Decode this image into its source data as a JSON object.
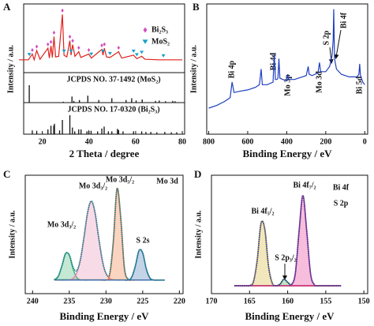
{
  "chart_data": [
    {
      "type": "xrd",
      "panel": "A",
      "y_label": "Intensity / a.u.",
      "x_label": "2 Theta / degree",
      "xlim": [
        12,
        81
      ],
      "xticks": [
        20,
        40,
        60,
        80
      ],
      "ylim": [
        0,
        110
      ],
      "color": "#e0201c",
      "x": [
        10,
        14,
        15.7,
        16.5,
        17.6,
        19,
        22.4,
        23,
        23.7,
        24.3,
        25,
        25.7,
        27,
        28.6,
        29.3,
        30.5,
        31.8,
        32.3,
        33,
        34,
        35.6,
        36.5,
        39.9,
        41,
        45.5,
        46,
        46.6,
        47.5,
        49,
        52.7,
        54,
        59.1,
        60.5,
        62.6,
        64,
        70,
        75,
        80
      ],
      "values": [
        22,
        22,
        32,
        22,
        38,
        23,
        42,
        25,
        46,
        26,
        62,
        27,
        28,
        100,
        30,
        27,
        55,
        30,
        48,
        28,
        36,
        26,
        32,
        25,
        40,
        30,
        42,
        27,
        26,
        36,
        25,
        30,
        24,
        28,
        23,
        22,
        22,
        22
      ],
      "legend": [
        {
          "name": "Bi₂S₃",
          "color": "#d050c0",
          "marker": "diamond",
          "marker_x": [
            15.7,
            17.6,
            22.4,
            23.7,
            25,
            28.6,
            31.8,
            33,
            35.6,
            39.9,
            45.5,
            46.6,
            52.7
          ]
        },
        {
          "name": "MoS₂",
          "color": "#1aa0c8",
          "marker": "triangle",
          "marker_x": [
            14.4,
            29.3,
            32.3,
            41,
            46,
            49,
            59.1,
            60.5,
            62.6,
            71.9
          ]
        }
      ],
      "references": [
        {
          "name": "JCPDS NO. 37-1492 (MoS₂)",
          "ylim": [
            0,
            100
          ],
          "x": [
            14.4,
            29,
            32.7,
            33.5,
            35.9,
            39.5,
            44.2,
            49.8,
            55.9,
            58.3,
            60.2,
            62.8,
            68.5,
            70.1,
            72.8,
            75.9,
            76.9
          ],
          "values": [
            100,
            5,
            35,
            10,
            15,
            40,
            15,
            25,
            15,
            25,
            12,
            18,
            10,
            12,
            8,
            10,
            8
          ]
        },
        {
          "name": "JCPDS NO. 17-0320 (Bi₂S₃)",
          "ylim": [
            0,
            100
          ],
          "x": [
            15.7,
            17.6,
            22.4,
            23.7,
            24.9,
            25.2,
            27.4,
            28.6,
            31.8,
            32.9,
            33.9,
            35.6,
            36.6,
            39.1,
            39.9,
            40.9,
            43.7,
            45.5,
            46.5,
            48.3,
            49.8,
            52.2,
            52.7,
            54.6,
            59.1,
            62.6,
            64.4,
            66.5,
            69.1,
            72.5,
            75.3,
            77.6
          ],
          "values": [
            20,
            18,
            25,
            45,
            45,
            55,
            20,
            75,
            100,
            35,
            15,
            25,
            25,
            15,
            20,
            18,
            15,
            30,
            40,
            15,
            15,
            28,
            22,
            15,
            15,
            15,
            12,
            12,
            10,
            12,
            10,
            10
          ]
        }
      ]
    },
    {
      "type": "line",
      "panel": "B",
      "y_label": "Intensity / a.u.",
      "x_label": "Binding Energy / eV",
      "xlim": [
        810,
        -15
      ],
      "xticks": [
        800,
        600,
        400,
        200,
        0
      ],
      "ylim": [
        0,
        100
      ],
      "color": "#1f3fbf",
      "x": [
        800,
        760,
        720,
        690,
        680,
        670,
        640,
        600,
        560,
        540,
        531,
        525,
        500,
        470,
        464,
        458,
        450,
        445,
        440,
        435,
        420,
        400,
        395,
        390,
        360,
        320,
        300,
        290,
        285,
        270,
        240,
        232,
        226,
        200,
        180,
        168,
        162,
        159,
        155,
        145,
        120,
        80,
        40,
        30,
        26,
        22,
        10,
        0
      ],
      "values": [
        20,
        22,
        25,
        28,
        40,
        32,
        33,
        34,
        36,
        38,
        50,
        38,
        38,
        40,
        62,
        42,
        42,
        43,
        58,
        43,
        42,
        41,
        46,
        42,
        42,
        44,
        45,
        52,
        46,
        45,
        47,
        55,
        48,
        48,
        52,
        60,
        72,
        96,
        58,
        50,
        46,
        44,
        44,
        46,
        54,
        45,
        40,
        38
      ],
      "annotations": [
        "Bi 4p",
        "Bi 4d",
        "Mo 3p",
        "Mo 3d",
        "S 2p",
        "Bi 4f",
        "Bi 5d"
      ]
    },
    {
      "type": "fit",
      "panel": "C",
      "title": [
        "Mo 3d"
      ],
      "y_label": "Intensity / a.u.",
      "x_label": "Binding Energy / eV",
      "xlim": [
        241,
        219.5
      ],
      "xticks": [
        240,
        235,
        230,
        225,
        220
      ],
      "ylim": [
        0,
        105
      ],
      "x": [
        237,
        236.5,
        236,
        235.5,
        235,
        234.5,
        234,
        233.5,
        233,
        232.5,
        232,
        231.5,
        231,
        230.5,
        230,
        229.5,
        229,
        228.5,
        228,
        227.5,
        227,
        226.5,
        226,
        225.5,
        225,
        224.5,
        224,
        223.5,
        223,
        222.5,
        222
      ],
      "series": [
        {
          "color": "#3cb371",
          "values": [
            12.5,
            15.4,
            24.7,
            35.6,
            34,
            22.3,
            14.4,
            12.3,
            12,
            12,
            12,
            12,
            12,
            12,
            12,
            12,
            12,
            12,
            12,
            12,
            12,
            12,
            12,
            12,
            12,
            12,
            12,
            12,
            12,
            12,
            12
          ]
        },
        {
          "color": "#e48ab4",
          "values": [
            12,
            12,
            12,
            12,
            12.3,
            13.5,
            17.9,
            29.5,
            49.8,
            72,
            82,
            72,
            49.8,
            29.5,
            17.9,
            13.5,
            12.3,
            12,
            12,
            12,
            12,
            12,
            12,
            12,
            12,
            12,
            12,
            12,
            12,
            12,
            12
          ]
        },
        {
          "color": "#f07030",
          "values": [
            12,
            12,
            12,
            12,
            12,
            12,
            12,
            12,
            12,
            12,
            12,
            12,
            12,
            12,
            12.1,
            16.2,
            46,
            93,
            68,
            23.2,
            12.7,
            12,
            12,
            12,
            12,
            12,
            12,
            12,
            12,
            12,
            12
          ]
        },
        {
          "color": "#3a6fb0",
          "values": [
            12,
            12,
            12,
            12,
            12,
            12,
            12,
            12,
            12,
            12,
            12,
            12,
            12,
            12,
            12,
            12,
            12,
            12,
            12,
            12,
            12,
            14.6,
            24.5,
            38.2,
            36.1,
            21.7,
            13.7,
            12.1,
            12,
            12,
            12
          ]
        },
        {
          "color": "#1d7f8a",
          "envelope": true,
          "values": [
            12.5,
            15.4,
            24.7,
            35.6,
            34.3,
            23.8,
            20.3,
            29.8,
            49.8,
            72,
            82,
            72,
            49.8,
            29.5,
            18,
            17.7,
            46.3,
            93,
            68,
            23.2,
            12.9,
            14.6,
            24.5,
            38.2,
            36.1,
            21.7,
            13.7,
            12.1,
            12,
            12,
            12
          ]
        }
      ],
      "annotations": [
        "Mo 3d₃/₂",
        "Mo 3d₃/₂",
        "Mo 3d₅/₂",
        "S 2s"
      ]
    },
    {
      "type": "fit",
      "panel": "D",
      "title": [
        "Bi  4f",
        "S  2p"
      ],
      "y_label": "Intensity / a.u.",
      "x_label": "Binding Energy / eV",
      "xlim": [
        170,
        149.5
      ],
      "xticks": [
        170,
        165,
        160,
        155,
        150
      ],
      "ylim": [
        0,
        105
      ],
      "x": [
        167,
        166.5,
        166,
        165.5,
        165,
        164.5,
        164,
        163.5,
        163,
        162.5,
        162,
        161.5,
        161,
        160.5,
        160,
        159.5,
        159,
        158.5,
        158,
        157.5,
        157,
        156.5,
        156,
        155.5,
        155,
        154.5,
        154,
        153.5,
        153
      ],
      "series": [
        {
          "color": "#d4b020",
          "values": [
            7,
            7,
            7,
            7,
            7.2,
            10.4,
            29.5,
            62.2,
            57.1,
            23.7,
            9,
            7.1,
            7,
            7,
            7,
            7,
            7,
            7,
            7,
            7,
            7,
            7,
            7,
            7,
            7,
            7,
            7,
            7,
            7
          ]
        },
        {
          "color": "#3a9a3a",
          "values": [
            7,
            7,
            7,
            7,
            7,
            7,
            7,
            7,
            7,
            7,
            7,
            7,
            8.4,
            12.8,
            10.1,
            7.2,
            7,
            7,
            7,
            7,
            7,
            7,
            7,
            7,
            7,
            7,
            7,
            7,
            7
          ]
        },
        {
          "color": "#e0288a",
          "values": [
            7,
            7,
            7,
            7,
            7,
            7,
            7,
            7,
            7,
            7,
            7,
            7,
            7,
            7,
            7,
            7.9,
            17.8,
            55.5,
            87,
            55.5,
            17.8,
            7.9,
            7,
            7,
            7,
            7,
            7,
            7,
            7
          ]
        },
        {
          "color": "#2a3a9a",
          "envelope": true,
          "values": [
            7,
            7,
            7,
            7,
            7.2,
            10.4,
            29.5,
            62.2,
            57.1,
            23.7,
            9,
            7.1,
            8.4,
            12.8,
            10.1,
            8.1,
            17.8,
            55.5,
            87,
            55.5,
            17.8,
            7.9,
            7,
            7,
            7,
            7,
            7,
            7,
            7
          ]
        }
      ],
      "annotations": [
        "Bi 4f₅/₂",
        "Bi 4f₇/₂",
        "S 2p₃/₂"
      ]
    }
  ]
}
